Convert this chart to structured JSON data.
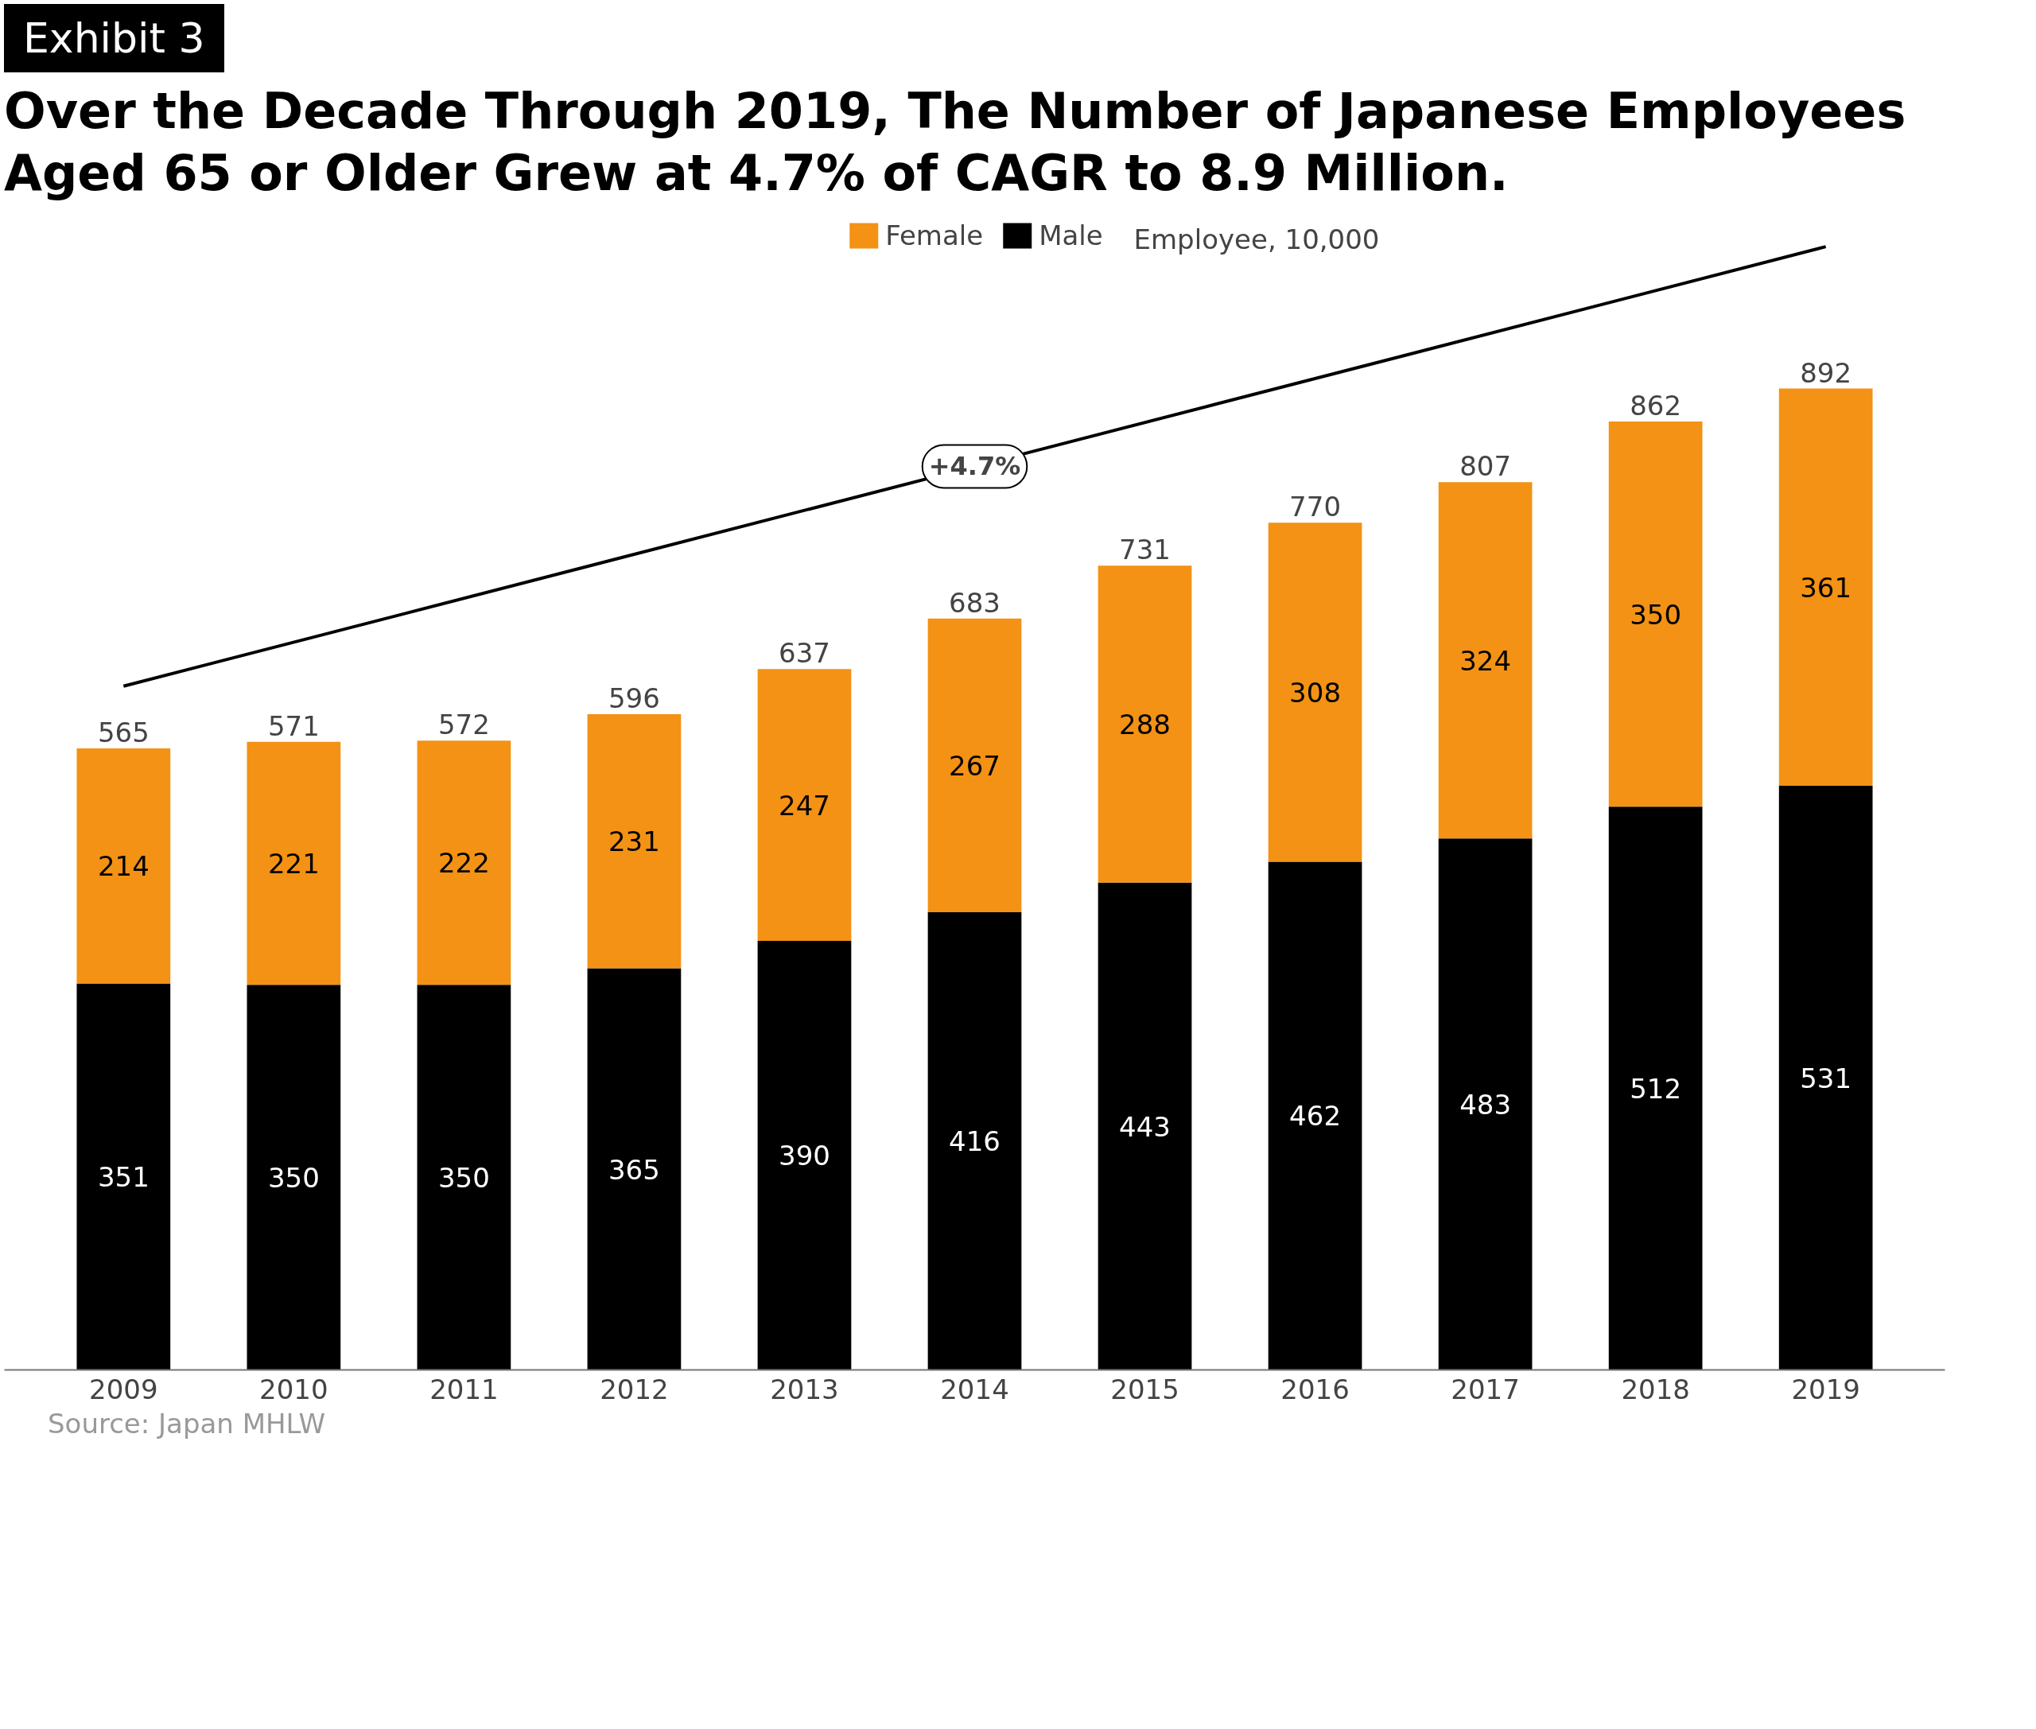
{
  "chart_data": {
    "type": "bar",
    "stacked": true,
    "title": "Over the Decade Through 2019, The Number of Japanese Employees Aged 65 or Older Grew at 4.7% of CAGR to 8.9 Million.",
    "categories": [
      "2009",
      "2010",
      "2011",
      "2012",
      "2013",
      "2014",
      "2015",
      "2016",
      "2017",
      "2018",
      "2019"
    ],
    "series": [
      {
        "name": "Male",
        "color": "#000000",
        "values": [
          351,
          350,
          350,
          365,
          390,
          416,
          443,
          462,
          483,
          512,
          531
        ]
      },
      {
        "name": "Female",
        "color": "#f39214",
        "values": [
          214,
          221,
          222,
          231,
          247,
          267,
          288,
          308,
          324,
          350,
          361
        ]
      }
    ],
    "totals": [
      "565",
      "571",
      "572",
      "596",
      "637",
      "683",
      "731",
      "770",
      "807",
      "862",
      "892"
    ],
    "data_labels": true,
    "legend": "top",
    "grid": false,
    "annotations": [
      "Exhibit 3",
      "Employee, 10,000",
      "+4.7%",
      "Source: Japan MHLW"
    ]
  }
}
